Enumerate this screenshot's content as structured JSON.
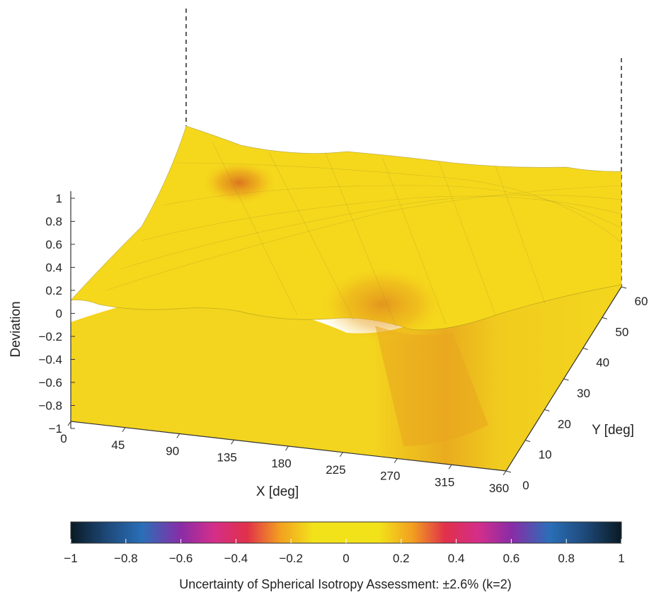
{
  "chart_data": {
    "type": "surface",
    "x": {
      "label": "X [deg]",
      "ticks": [
        0,
        45,
        90,
        135,
        180,
        225,
        270,
        315,
        360
      ],
      "range": [
        0,
        360
      ]
    },
    "y": {
      "label": "Y [deg]",
      "ticks": [
        0,
        10,
        20,
        30,
        40,
        50,
        60
      ],
      "range": [
        0,
        60
      ]
    },
    "z": {
      "label": "Deviation",
      "ticks": [
        -1,
        -0.8,
        -0.6,
        -0.4,
        -0.2,
        0,
        0.2,
        0.4,
        0.6,
        0.8,
        1
      ],
      "tick_labels": [
        "−1",
        "−0.8",
        "−0.6",
        "−0.4",
        "−0.2",
        "0",
        "0.2",
        "0.4",
        "0.6",
        "0.8",
        "1"
      ],
      "range": [
        -1,
        1
      ]
    },
    "colorbar": {
      "ticks": [
        -1,
        -0.8,
        -0.6,
        -0.4,
        -0.2,
        0,
        0.2,
        0.4,
        0.6,
        0.8,
        1
      ],
      "tick_labels": [
        "−1",
        "−0.8",
        "−0.6",
        "−0.4",
        "−0.2",
        "0",
        "0.2",
        "0.4",
        "0.6",
        "0.8",
        "1"
      ],
      "colors": {
        "-1": "#0a1a24",
        "-0.8": "#2a6fb8",
        "-0.6": "#8a2ca6",
        "-0.4": "#e0304a",
        "-0.2": "#f2a020",
        "0": "#f2e21a",
        "0.2": "#f2a020",
        "0.4": "#e0304a",
        "0.6": "#8a2ca6",
        "0.8": "#2a6fb8",
        "1": "#0a1a24"
      }
    },
    "surfaces": [
      {
        "description_level": "lower",
        "base_deviation": -0.15,
        "color": "#f2d21e"
      },
      {
        "description_level": "upper",
        "base_deviation": 0.12,
        "color": "#f5d61c",
        "features": [
          {
            "x": 90,
            "y": 45,
            "deviation": 0.35,
            "color": "#e08a20"
          },
          {
            "x": 290,
            "y": 20,
            "deviation": 0.3,
            "color": "#e59a1e"
          }
        ]
      }
    ],
    "grid": true
  },
  "caption": "Uncertainty of Spherical Isotropy Assessment: ±2.6% (k=2)"
}
